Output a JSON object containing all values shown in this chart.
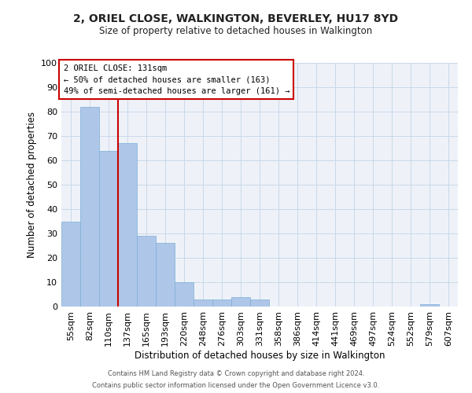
{
  "title": "2, ORIEL CLOSE, WALKINGTON, BEVERLEY, HU17 8YD",
  "subtitle": "Size of property relative to detached houses in Walkington",
  "xlabel": "Distribution of detached houses by size in Walkington",
  "ylabel": "Number of detached properties",
  "bar_color": "#aec6e8",
  "bar_edge_color": "#7bafd4",
  "grid_color": "#c8d8ea",
  "background_color": "#eef2f8",
  "tick_labels": [
    "55sqm",
    "82sqm",
    "110sqm",
    "137sqm",
    "165sqm",
    "193sqm",
    "220sqm",
    "248sqm",
    "276sqm",
    "303sqm",
    "331sqm",
    "358sqm",
    "386sqm",
    "414sqm",
    "441sqm",
    "469sqm",
    "497sqm",
    "524sqm",
    "552sqm",
    "579sqm",
    "607sqm"
  ],
  "bar_values": [
    35,
    82,
    64,
    67,
    29,
    26,
    10,
    3,
    3,
    4,
    3,
    0,
    0,
    0,
    0,
    0,
    0,
    0,
    0,
    1,
    0
  ],
  "ylim": [
    0,
    100
  ],
  "yticks": [
    0,
    10,
    20,
    30,
    40,
    50,
    60,
    70,
    80,
    90,
    100
  ],
  "vline_color": "#cc0000",
  "vline_position": 2.5,
  "annotation_title": "2 ORIEL CLOSE: 131sqm",
  "annotation_line1": "← 50% of detached houses are smaller (163)",
  "annotation_line2": "49% of semi-detached houses are larger (161) →",
  "annotation_box_color": "#ffffff",
  "annotation_box_edge": "#cc0000",
  "footer1": "Contains HM Land Registry data © Crown copyright and database right 2024.",
  "footer2": "Contains public sector information licensed under the Open Government Licence v3.0."
}
